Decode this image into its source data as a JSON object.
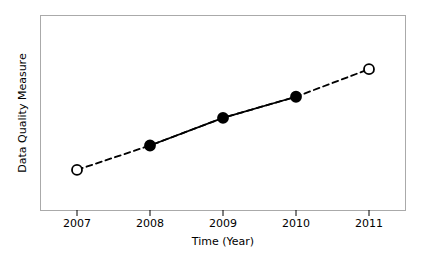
{
  "chart_data": {
    "type": "line",
    "xlabel": "Time (Year)",
    "ylabel": "Data Quality Measure",
    "x": [
      2007,
      2008,
      2009,
      2010,
      2011
    ],
    "series": [
      {
        "type": "line",
        "line_style": "dashed",
        "marker": "none",
        "color": "#000000",
        "values": [
          0.2,
          0.35,
          0.52,
          0.65,
          0.82
        ]
      },
      {
        "type": "line",
        "line_style": "solid",
        "marker": "filled_circle",
        "color": "#000000",
        "values": [
          null,
          0.35,
          0.52,
          0.65,
          null
        ]
      },
      {
        "type": "scatter",
        "marker": "open_circle",
        "color": "#000000",
        "values": [
          0.2,
          null,
          null,
          null,
          0.82
        ]
      }
    ],
    "xlim": [
      2006.5,
      2011.5
    ],
    "xticks": [
      2007,
      2008,
      2009,
      2010,
      2011
    ],
    "ylim": [
      -0.05,
      1.15
    ],
    "yticks": [],
    "tick_labels": "x",
    "grid": false
  }
}
